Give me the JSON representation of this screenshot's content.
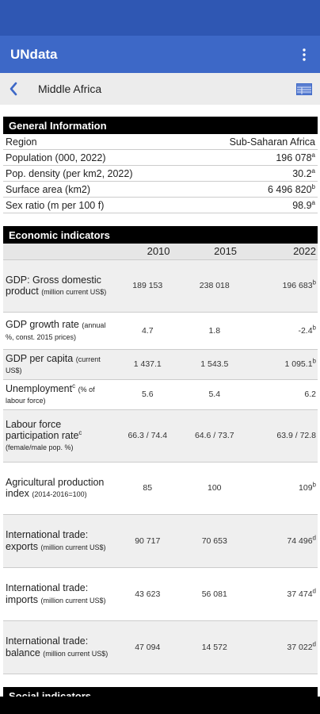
{
  "app": {
    "title": "UNdata",
    "menu_icon": "kebab-menu-icon"
  },
  "nav": {
    "region": "Middle Africa",
    "back_icon": "chevron-left-icon",
    "table_icon": "table-view-icon"
  },
  "colors": {
    "status_bar": "#2f57b3",
    "app_bar": "#3d68c7",
    "section_header": "#000000"
  },
  "general": {
    "title": "General Information",
    "rows": [
      {
        "label": "Region",
        "value": "Sub-Saharan Africa",
        "note": ""
      },
      {
        "label": "Population (000, 2022)",
        "value": "196 078",
        "note": "a"
      },
      {
        "label": "Pop. density (per km2, 2022)",
        "value": "30.2",
        "note": "a"
      },
      {
        "label": "Surface area (km2)",
        "value": "6 496 820",
        "note": "b"
      },
      {
        "label": "Sex ratio (m per 100 f)",
        "value": "98.9",
        "note": "a"
      }
    ]
  },
  "economic": {
    "title": "Economic indicators",
    "years": [
      "2010",
      "2015",
      "2022"
    ],
    "rows": [
      {
        "label": "GDP: Gross domestic product",
        "label_note": "",
        "unit": "(million current US$)",
        "v2010": "189 153",
        "v2015": "238 018",
        "v2022": "196 683",
        "note": "b"
      },
      {
        "label": "GDP growth rate",
        "label_note": "",
        "unit": "(annual %, const. 2015 prices)",
        "v2010": "4.7",
        "v2015": "1.8",
        "v2022": "-2.4",
        "note": "b"
      },
      {
        "label": "GDP per capita",
        "label_note": "",
        "unit": "(current US$)",
        "v2010": "1 437.1",
        "v2015": "1 543.5",
        "v2022": "1 095.1",
        "note": "b"
      },
      {
        "label": "Unemployment",
        "label_note": "c",
        "unit": "(% of labour force)",
        "v2010": "5.6",
        "v2015": "5.4",
        "v2022": "6.2",
        "note": ""
      },
      {
        "label": "Labour force participation rate",
        "label_note": "c",
        "unit": "(female/male pop. %)",
        "v2010": "66.3 / 74.4",
        "v2015": "64.6 / 73.7",
        "v2022": "63.9 / 72.8",
        "note": ""
      },
      {
        "label": "Agricultural production index",
        "label_note": "",
        "unit": "(2014-2016=100)",
        "v2010": "85",
        "v2015": "100",
        "v2022": "109",
        "note": "b"
      },
      {
        "label": "International trade: exports",
        "label_note": "",
        "unit": "(million current US$)",
        "v2010": "90 717",
        "v2015": "70 653",
        "v2022": "74 496",
        "note": "d"
      },
      {
        "label": "International trade: imports",
        "label_note": "",
        "unit": "(million current US$)",
        "v2010": "43 623",
        "v2015": "56 081",
        "v2022": "37 474",
        "note": "d"
      },
      {
        "label": "International trade: balance",
        "label_note": "",
        "unit": "(million current US$)",
        "v2010": "47 094",
        "v2015": "14 572",
        "v2022": "37 022",
        "note": "d"
      }
    ]
  },
  "social": {
    "title": "Social indicators"
  }
}
